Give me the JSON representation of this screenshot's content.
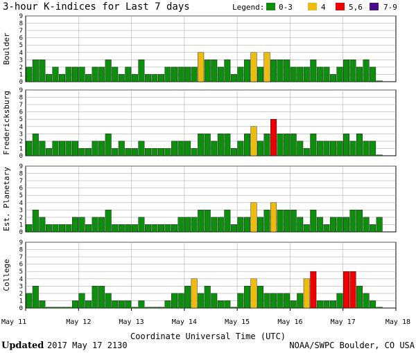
{
  "chart_data": {
    "type": "bar",
    "title": "3-hour K-indices for Last 7 days",
    "legend": {
      "label": "Legend:",
      "position": "top-right",
      "items": [
        {
          "label": "0-3",
          "color": "#0d8f0d"
        },
        {
          "label": "4",
          "color": "#eebb11"
        },
        {
          "label": "5,6",
          "color": "#ee0000"
        },
        {
          "label": "7-9",
          "color": "#4a0a8a"
        }
      ]
    },
    "ylim": [
      0,
      9
    ],
    "yticks": [
      "0",
      "1",
      "2",
      "3",
      "4",
      "5",
      "6",
      "7",
      "8",
      "9"
    ],
    "grid": true,
    "x_tick_labels": [
      "May 11",
      "May 12",
      "May 13",
      "May 14",
      "May 15",
      "May 16",
      "May 17",
      "May 18"
    ],
    "xlabel": "Coordinate Universal Time (UTC)",
    "series": [
      {
        "name": "Boulder",
        "values": [
          2,
          3,
          3,
          1,
          2,
          1,
          2,
          2,
          2,
          1,
          2,
          2,
          3,
          2,
          1,
          2,
          1,
          3,
          1,
          1,
          1,
          2,
          2,
          2,
          2,
          2,
          4,
          3,
          3,
          2,
          3,
          1,
          2,
          3,
          4,
          2,
          4,
          3,
          3,
          3,
          2,
          2,
          2,
          3,
          2,
          2,
          1,
          2,
          3,
          3,
          2,
          3,
          2,
          0
        ]
      },
      {
        "name": "Fredericksburg",
        "values": [
          2,
          3,
          2,
          1,
          2,
          2,
          2,
          2,
          1,
          1,
          2,
          2,
          3,
          1,
          2,
          1,
          1,
          2,
          1,
          1,
          1,
          1,
          2,
          2,
          2,
          1,
          3,
          3,
          2,
          3,
          3,
          1,
          2,
          3,
          4,
          2,
          3,
          5,
          3,
          3,
          3,
          2,
          1,
          3,
          2,
          2,
          2,
          2,
          3,
          2,
          3,
          2,
          2,
          0
        ]
      },
      {
        "name": "Est. Planetary",
        "values": [
          1,
          3,
          2,
          1,
          1,
          1,
          1,
          2,
          2,
          1,
          2,
          2,
          3,
          1,
          1,
          1,
          1,
          2,
          1,
          1,
          1,
          1,
          1,
          2,
          2,
          2,
          3,
          3,
          2,
          2,
          3,
          1,
          2,
          2,
          4,
          2,
          3,
          4,
          3,
          3,
          3,
          2,
          1,
          3,
          2,
          1,
          2,
          2,
          2,
          3,
          3,
          2,
          1,
          2
        ]
      },
      {
        "name": "College",
        "values": [
          2,
          3,
          1,
          0,
          0,
          0,
          0,
          1,
          2,
          1,
          3,
          3,
          2,
          1,
          1,
          1,
          0,
          1,
          0,
          0,
          0,
          1,
          2,
          2,
          3,
          4,
          2,
          3,
          2,
          1,
          1,
          0,
          2,
          3,
          4,
          3,
          2,
          2,
          2,
          2,
          1,
          2,
          4,
          5,
          1,
          1,
          1,
          2,
          5,
          5,
          3,
          2,
          1,
          0
        ]
      }
    ],
    "footer": {
      "updated_label": "Updated",
      "updated_value": "2017 May 17 2130",
      "source": "NOAA/SWPC Boulder, CO USA"
    }
  }
}
